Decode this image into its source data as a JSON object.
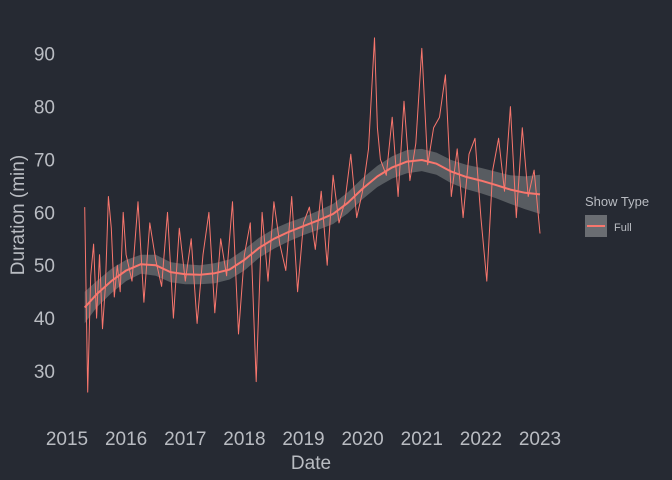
{
  "chart_data": {
    "type": "line",
    "title": "",
    "xlabel": "Date",
    "ylabel": "Duration (min)",
    "x_tick_labels": [
      "2015",
      "2016",
      "2017",
      "2018",
      "2019",
      "2020",
      "2021",
      "2022",
      "2023"
    ],
    "y_ticks": [
      30,
      40,
      50,
      60,
      70,
      80,
      90
    ],
    "xlim": [
      2015.0,
      2023.0
    ],
    "ylim": [
      23,
      96
    ],
    "grid": false,
    "legend": {
      "title": "Show Type",
      "entries": [
        "Full"
      ],
      "position": "right"
    },
    "series": [
      {
        "name": "Full",
        "kind": "raw",
        "x": [
          2015.3,
          2015.35,
          2015.4,
          2015.45,
          2015.5,
          2015.55,
          2015.6,
          2015.65,
          2015.7,
          2015.75,
          2015.8,
          2015.85,
          2015.9,
          2015.95,
          2016.0,
          2016.1,
          2016.2,
          2016.3,
          2016.4,
          2016.5,
          2016.6,
          2016.7,
          2016.8,
          2016.9,
          2017.0,
          2017.1,
          2017.2,
          2017.3,
          2017.4,
          2017.5,
          2017.6,
          2017.7,
          2017.8,
          2017.9,
          2018.0,
          2018.1,
          2018.2,
          2018.3,
          2018.4,
          2018.5,
          2018.6,
          2018.7,
          2018.8,
          2018.9,
          2019.0,
          2019.1,
          2019.2,
          2019.3,
          2019.4,
          2019.5,
          2019.6,
          2019.7,
          2019.8,
          2019.9,
          2020.0,
          2020.1,
          2020.2,
          2020.25,
          2020.3,
          2020.4,
          2020.5,
          2020.6,
          2020.7,
          2020.8,
          2020.9,
          2021.0,
          2021.1,
          2021.2,
          2021.3,
          2021.4,
          2021.5,
          2021.6,
          2021.7,
          2021.8,
          2021.9,
          2022.0,
          2022.1,
          2022.2,
          2022.3,
          2022.4,
          2022.5,
          2022.6,
          2022.7,
          2022.8,
          2022.9,
          2023.0
        ],
        "values": [
          61,
          26,
          48,
          54,
          40,
          52,
          38,
          46,
          63,
          57,
          44,
          50,
          45,
          60,
          52,
          47,
          62,
          43,
          58,
          51,
          46,
          60,
          40,
          57,
          47,
          55,
          39,
          52,
          60,
          41,
          55,
          48,
          62,
          37,
          52,
          58,
          28,
          60,
          47,
          62,
          54,
          49,
          63,
          45,
          58,
          61,
          53,
          64,
          50,
          67,
          58,
          62,
          71,
          59,
          64,
          72,
          93,
          76,
          70,
          67,
          78,
          63,
          81,
          66,
          73,
          91,
          69,
          76,
          78,
          86,
          63,
          72,
          59,
          71,
          74,
          59,
          47,
          68,
          74,
          64,
          80,
          59,
          76,
          63,
          68,
          56
        ]
      },
      {
        "name": "Full",
        "kind": "smooth",
        "x": [
          2015.3,
          2015.5,
          2015.75,
          2016.0,
          2016.25,
          2016.5,
          2016.75,
          2017.0,
          2017.25,
          2017.5,
          2017.75,
          2018.0,
          2018.25,
          2018.5,
          2018.75,
          2019.0,
          2019.25,
          2019.5,
          2019.75,
          2020.0,
          2020.25,
          2020.5,
          2020.75,
          2021.0,
          2021.25,
          2021.5,
          2021.75,
          2022.0,
          2022.25,
          2022.5,
          2022.75,
          2023.0
        ],
        "values": [
          42,
          44.5,
          47,
          49,
          50.2,
          50,
          48.7,
          48.3,
          48.2,
          48.5,
          49.2,
          51,
          53.3,
          55,
          56.3,
          57.4,
          58.5,
          59.7,
          61.8,
          64.5,
          66.8,
          68.5,
          69.6,
          69.9,
          69.2,
          67.7,
          66.7,
          66,
          65.2,
          64.3,
          63.7,
          63.4
        ],
        "band_upper": [
          45,
          47,
          49.3,
          51,
          52,
          52,
          50.6,
          50.2,
          50,
          50.4,
          51.1,
          53,
          55.2,
          56.9,
          58.1,
          59.1,
          60.3,
          61.6,
          63.8,
          66.5,
          68.8,
          70.6,
          71.8,
          72,
          71.3,
          69.9,
          69,
          68.4,
          67.7,
          67,
          66.8,
          67.1
        ],
        "band_lower": [
          39,
          42,
          44.7,
          47,
          48.4,
          48,
          46.8,
          46.4,
          46.4,
          46.6,
          47.3,
          49,
          51.4,
          53.1,
          54.5,
          55.7,
          56.7,
          57.8,
          59.8,
          62.5,
          64.8,
          66.4,
          67.4,
          67.8,
          67.1,
          65.5,
          64.4,
          63.6,
          62.7,
          61.6,
          60.6,
          59.7
        ]
      }
    ],
    "colors": {
      "line": "#f8766d",
      "band": "#6a6d72",
      "background": "#262a33",
      "text": "#b9bcc2"
    }
  }
}
